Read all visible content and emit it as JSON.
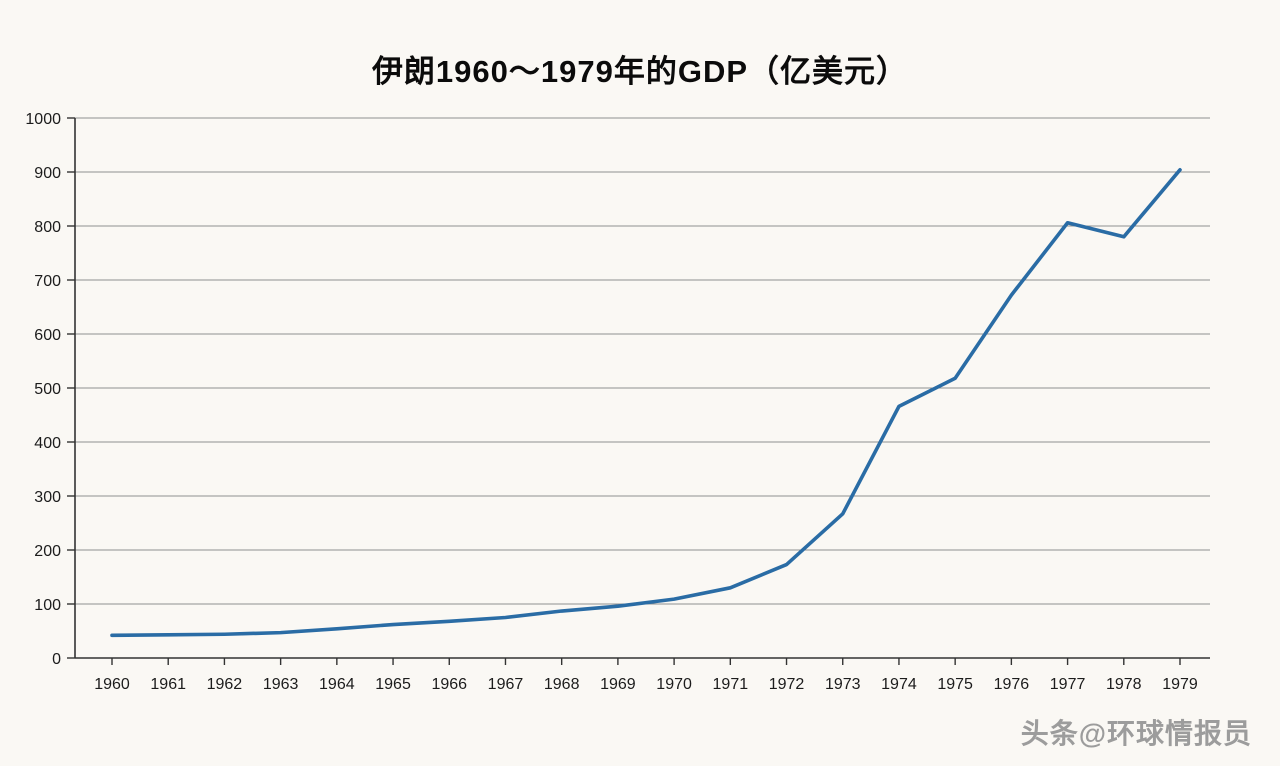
{
  "chart_data": {
    "type": "line",
    "title": "伊朗1960～1979年的GDP（亿美元）",
    "categories": [
      "1960",
      "1961",
      "1962",
      "1963",
      "1964",
      "1965",
      "1966",
      "1967",
      "1968",
      "1969",
      "1970",
      "1971",
      "1972",
      "1973",
      "1974",
      "1975",
      "1976",
      "1977",
      "1978",
      "1979"
    ],
    "series": [
      {
        "name": "伊朗GDP（亿美元）",
        "values": [
          42,
          43,
          44,
          47,
          54,
          62,
          68,
          75,
          87,
          96,
          109,
          130,
          173,
          267,
          466,
          518,
          672,
          806,
          780,
          904
        ]
      }
    ],
    "xlabel": "",
    "ylabel": "",
    "ylim": [
      0,
      1000
    ],
    "ytick_step": 100,
    "grid": true,
    "legend": "none",
    "line_color": "#2a6ca5",
    "grid_color": "#8f8f8f",
    "axis_color": "#333333"
  },
  "watermark": {
    "text": "头条@环球情报员"
  }
}
